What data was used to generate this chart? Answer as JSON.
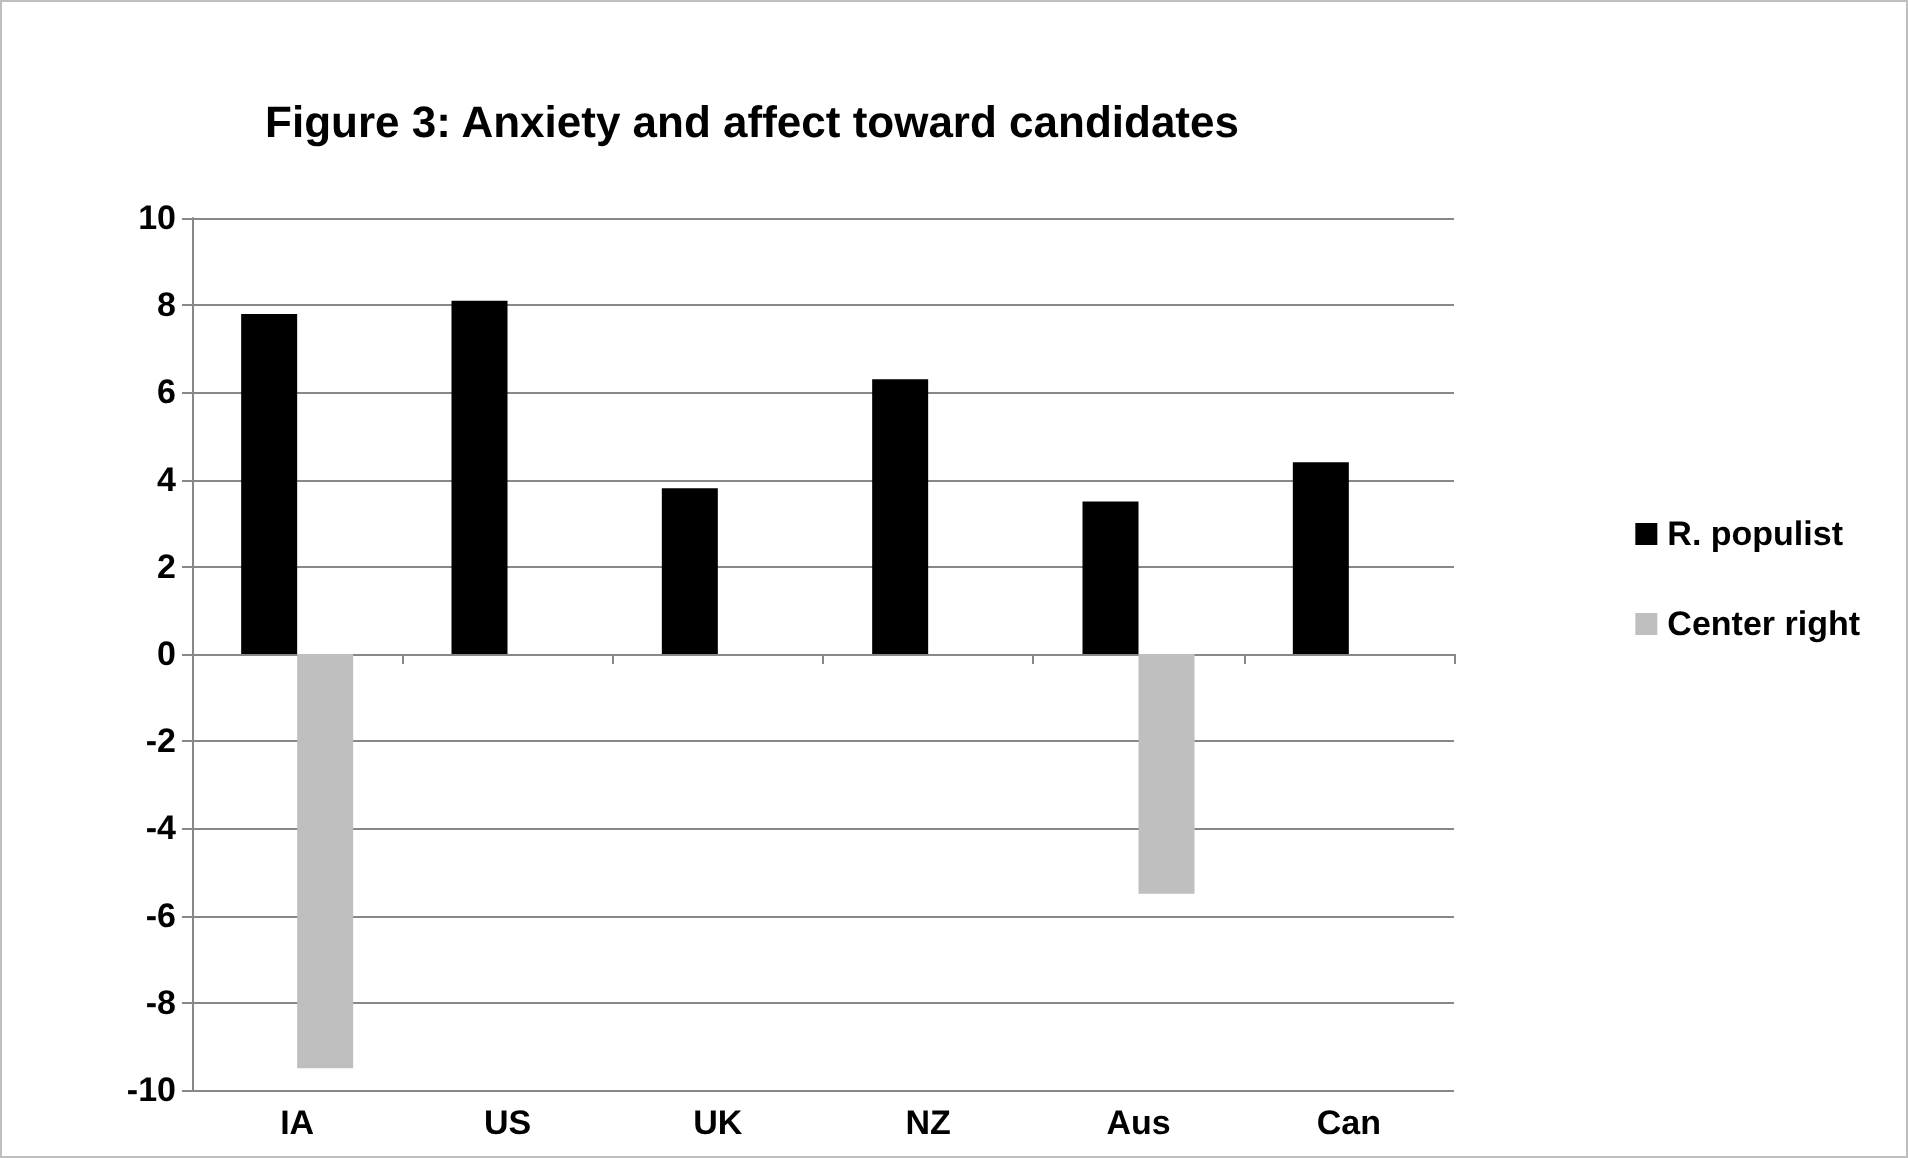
{
  "chart_data": {
    "type": "bar",
    "title": "Figure 3: Anxiety and affect toward candidates",
    "categories": [
      "IA",
      "US",
      "UK",
      "NZ",
      "Aus",
      "Can"
    ],
    "series": [
      {
        "name": "R. populist",
        "color": "#000000",
        "values": [
          7.8,
          8.1,
          3.8,
          6.3,
          3.5,
          4.4
        ]
      },
      {
        "name": "Center right",
        "color": "#bfbfbf",
        "values": [
          -9.5,
          null,
          null,
          null,
          -5.5,
          null
        ]
      }
    ],
    "ylim": [
      -10,
      10
    ],
    "yticks": [
      -10,
      -8,
      -6,
      -4,
      -2,
      0,
      2,
      4,
      6,
      8,
      10
    ],
    "grid": "y",
    "legend": "right"
  }
}
